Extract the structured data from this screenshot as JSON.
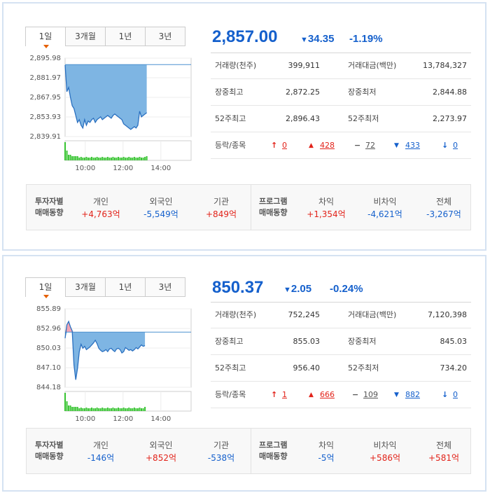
{
  "tabs": [
    "1일",
    "3개월",
    "1년",
    "3년"
  ],
  "markets": [
    {
      "price": "2,857.00",
      "change_arrow": "▼",
      "change": "34.35",
      "change_pct": "-1.19%",
      "chart": {
        "y_ticks": [
          "2,895.98",
          "2,881.97",
          "2,867.95",
          "2,853.93",
          "2,839.91"
        ],
        "x_ticks": [
          "10:00",
          "12:00",
          "14:00"
        ],
        "prev_close": 2891.35,
        "series": [
          2891,
          2872,
          2875,
          2868,
          2862,
          2860,
          2855,
          2850,
          2852,
          2848,
          2846,
          2852,
          2848,
          2851,
          2850,
          2852,
          2853,
          2850,
          2852,
          2853,
          2854,
          2852,
          2853,
          2854,
          2855,
          2854,
          2853,
          2855,
          2856,
          2855,
          2854,
          2853,
          2852,
          2849,
          2848,
          2847,
          2846,
          2845,
          2846,
          2847,
          2846,
          2848,
          2858,
          2854,
          2855,
          2856,
          2857
        ]
      },
      "stats": {
        "volume_label": "거래량(천주)",
        "volume": "399,911",
        "amount_label": "거래대금(백만)",
        "amount": "13,784,327",
        "high_label": "장중최고",
        "high": "2,872.25",
        "low_label": "장중최저",
        "low": "2,844.88",
        "w52_high_label": "52주최고",
        "w52_high": "2,896.43",
        "w52_low_label": "52주최저",
        "w52_low": "2,273.97",
        "updown_label": "등락/종목",
        "upper_limit": "0",
        "up": "428",
        "flat": "72",
        "down": "433",
        "lower_limit": "0"
      },
      "investor": {
        "head1": "투자자별",
        "head2": "매매동향",
        "individual_label": "개인",
        "individual": "+4,763억",
        "foreign_label": "외국인",
        "foreign": "-5,549억",
        "institution_label": "기관",
        "institution": "+849억"
      },
      "program": {
        "head1": "프로그램",
        "head2": "매매동향",
        "arbitrage_label": "차익",
        "arbitrage": "+1,354억",
        "non_arbitrage_label": "비차익",
        "non_arbitrage": "-4,621억",
        "total_label": "전체",
        "total": "-3,267억"
      }
    },
    {
      "price": "850.37",
      "change_arrow": "▼",
      "change": "2.05",
      "change_pct": "-0.24%",
      "chart": {
        "y_ticks": [
          "855.89",
          "852.96",
          "850.03",
          "847.10",
          "844.18"
        ],
        "x_ticks": [
          "10:00",
          "12:00",
          "14:00"
        ],
        "prev_close": 852.42,
        "series": [
          851.5,
          853.5,
          854.0,
          853.2,
          852.6,
          847.5,
          845.3,
          847.0,
          849.5,
          850.6,
          850.0,
          850.3,
          849.8,
          850.0,
          850.2,
          850.5,
          850.8,
          851.2,
          850.7,
          850.0,
          849.7,
          849.5,
          849.6,
          849.8,
          849.5,
          849.9,
          850.0,
          849.7,
          849.5,
          849.9,
          850.0,
          849.8,
          849.3,
          849.5,
          850.1,
          849.9,
          849.7,
          849.8,
          849.6,
          849.8,
          850.1,
          849.9,
          850.2,
          850.5,
          850.3,
          850.4
        ]
      },
      "stats": {
        "volume_label": "거래량(천주)",
        "volume": "752,245",
        "amount_label": "거래대금(백만)",
        "amount": "7,120,398",
        "high_label": "장중최고",
        "high": "855.03",
        "low_label": "장중최저",
        "low": "845.03",
        "w52_high_label": "52주최고",
        "w52_high": "956.40",
        "w52_low_label": "52주최저",
        "w52_low": "734.20",
        "updown_label": "등락/종목",
        "upper_limit": "1",
        "up": "666",
        "flat": "109",
        "down": "882",
        "lower_limit": "0"
      },
      "investor": {
        "head1": "투자자별",
        "head2": "매매동향",
        "individual_label": "개인",
        "individual": "-146억",
        "foreign_label": "외국인",
        "foreign": "+852억",
        "institution_label": "기관",
        "institution": "-538억"
      },
      "program": {
        "head1": "프로그램",
        "head2": "매매동향",
        "arbitrage_label": "차익",
        "arbitrage": "-5억",
        "non_arbitrage_label": "비차익",
        "non_arbitrage": "+586억",
        "total_label": "전체",
        "total": "+581억"
      }
    }
  ],
  "colors": {
    "up": "#e2231a",
    "down": "#1560cc",
    "bar": "#37c431"
  }
}
